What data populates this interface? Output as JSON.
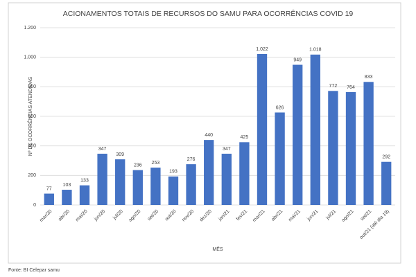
{
  "chart_data": {
    "type": "bar",
    "title": "ACIONAMENTOS TOTAIS DE RECURSOS DO SAMU PARA OCORRÊNCIAS COVID 19",
    "x_label": "MÊS",
    "y_label": "Nº DE OCORRÊNCIAS ATENDIDAS",
    "source": "Fonte: BI Celepar samu",
    "categories": [
      "mar/20",
      "abr/20",
      "mai/20",
      "jun/20",
      "jul/20",
      "ago/20",
      "set/20",
      "out/20",
      "nov/20",
      "dez/20",
      "jan/21",
      "fev/21",
      "mar/21",
      "abr/21",
      "mai/21",
      "jun/21",
      "jul/21",
      "ago/21",
      "set/21",
      "out/21 (até dia 19)"
    ],
    "values": [
      77,
      103,
      133,
      347,
      309,
      236,
      253,
      193,
      276,
      440,
      347,
      425,
      1022,
      626,
      949,
      1018,
      772,
      764,
      833,
      292
    ],
    "value_labels": [
      "77",
      "103",
      "133",
      "347",
      "309",
      "236",
      "253",
      "193",
      "276",
      "440",
      "347",
      "425",
      "1.022",
      "626",
      "949",
      "1.018",
      "772",
      "764",
      "833",
      "292"
    ],
    "color": "#4472c4",
    "ylim": [
      0,
      1200
    ],
    "yticks": [
      0,
      200,
      400,
      600,
      800,
      {
        "value": 1000,
        "label": "1.000"
      },
      {
        "value": 1200,
        "label": "1.200"
      }
    ],
    "grid": true
  }
}
